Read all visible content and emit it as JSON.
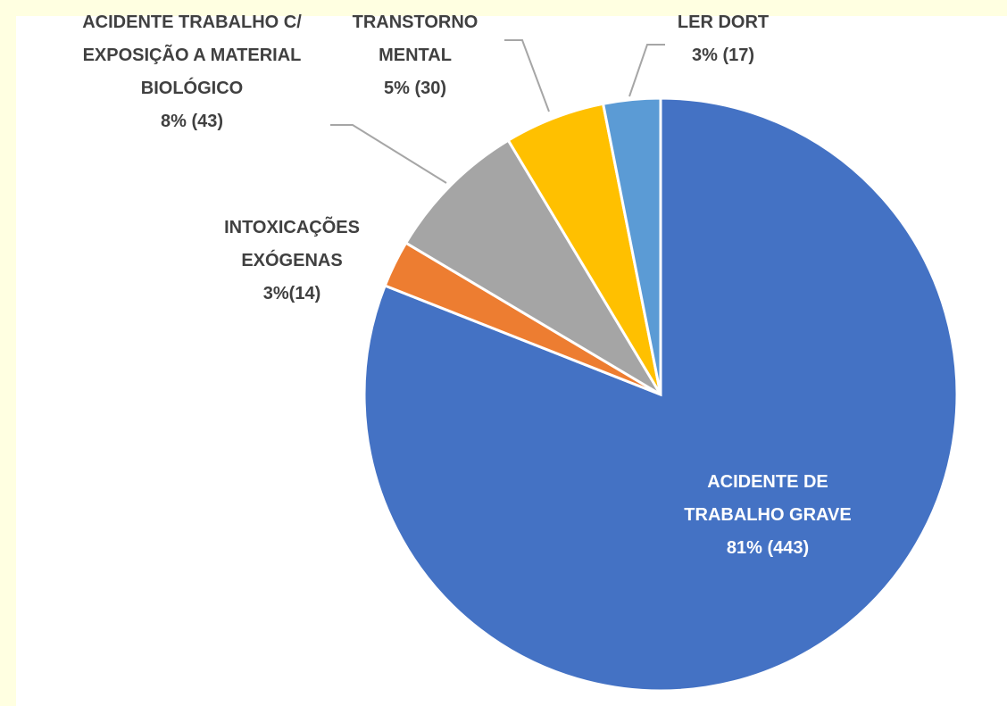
{
  "chart_data": {
    "type": "pie",
    "categories": [
      "ACIDENTE DE TRABALHO GRAVE",
      "INTOXICAÇÕES EXÓGENAS",
      "ACIDENTE TRABALHO C/ EXPOSIÇÃO A MATERIAL BIOLÓGICO",
      "TRANSTORNO MENTAL",
      "LER DORT"
    ],
    "values": [
      443,
      14,
      43,
      30,
      17
    ],
    "value_labels": [
      "81% (443)",
      "3%(14)",
      "8% (43)",
      "5% (30)",
      "3% (17)"
    ],
    "colors": [
      "#4472c4",
      "#ed7d31",
      "#a5a5a5",
      "#ffc000",
      "#5b9bd5"
    ]
  }
}
